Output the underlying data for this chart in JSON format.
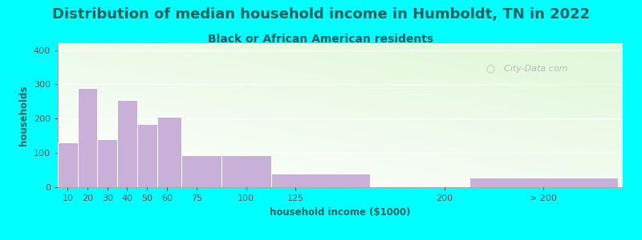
{
  "title": "Distribution of median household income in Humboldt, TN in 2022",
  "subtitle": "Black or African American residents",
  "xlabel": "household income ($1000)",
  "ylabel": "households",
  "bar_lefts": [
    5,
    15,
    25,
    35,
    45,
    55,
    67.5,
    87.5,
    112.5,
    162.5,
    212.5
  ],
  "bar_heights": [
    130,
    290,
    140,
    255,
    185,
    205,
    93,
    93,
    40,
    0,
    27
  ],
  "bar_widths": [
    10,
    10,
    10,
    10,
    10,
    12.5,
    20,
    25,
    50,
    0,
    75
  ],
  "bar_color": "#c8b0d8",
  "bar_edge_color": "#ffffff",
  "ylim": [
    0,
    420
  ],
  "yticks": [
    0,
    100,
    200,
    300,
    400
  ],
  "xlim": [
    5,
    290
  ],
  "background_color": "#00ffff",
  "title_color": "#1a6060",
  "subtitle_color": "#006060",
  "title_fontsize": 13,
  "subtitle_fontsize": 10,
  "axis_label_fontsize": 8.5,
  "tick_fontsize": 8,
  "watermark": "  City-Data.com",
  "xtick_labels": [
    "10",
    "20",
    "30",
    "40",
    "50",
    "60",
    "75",
    "100",
    "125",
    "200",
    "> 200"
  ],
  "xtick_positions": [
    10,
    20,
    30,
    40,
    50,
    60,
    75,
    100,
    125,
    200,
    250
  ]
}
